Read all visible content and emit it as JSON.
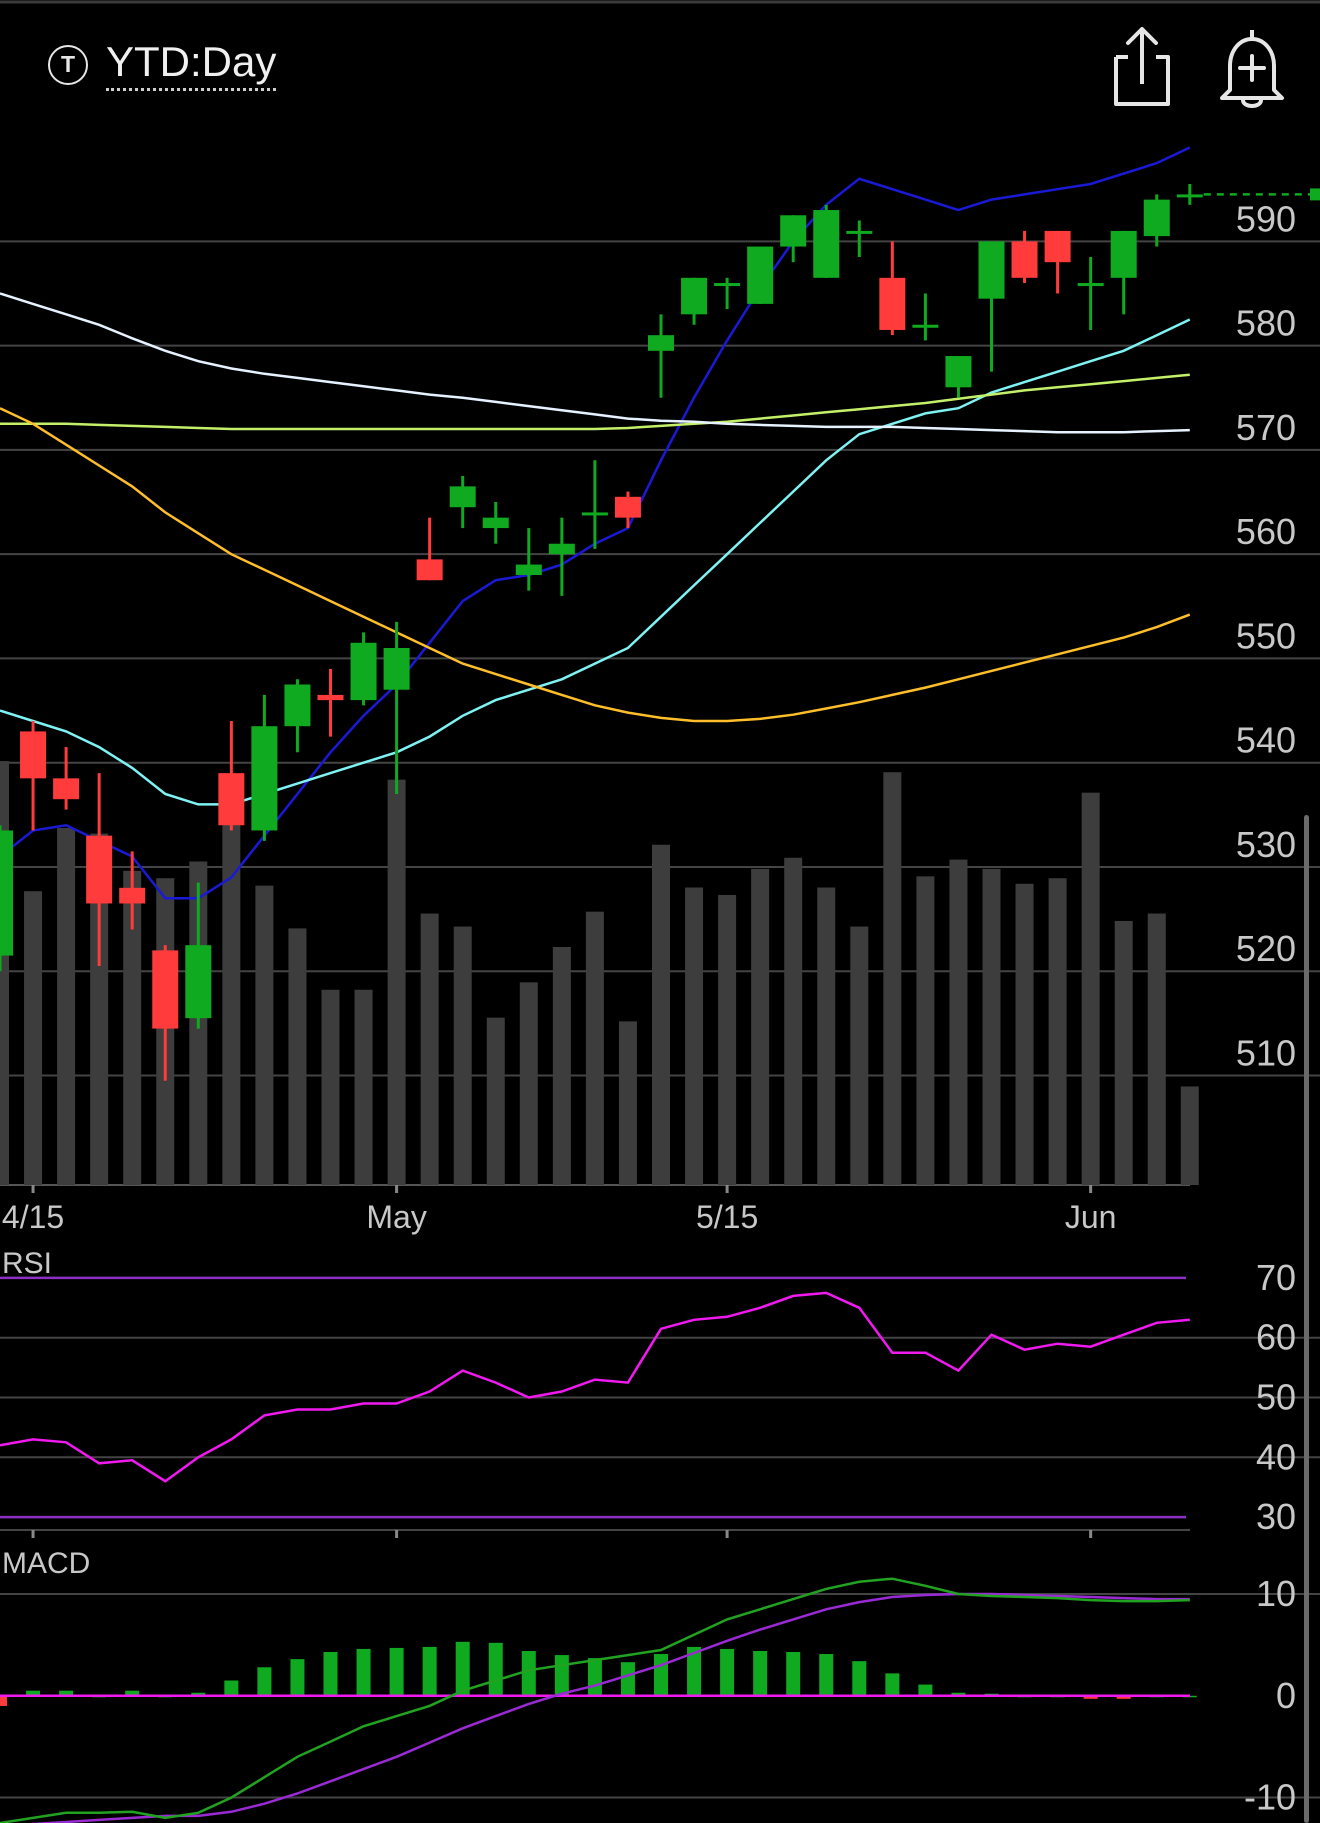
{
  "header": {
    "symbol_badge": "T",
    "range_label": "YTD:Day"
  },
  "icons": {
    "share": "share-icon",
    "alert": "bell-plus-icon"
  },
  "colors": {
    "background": "#000000",
    "up": "#0faa1f",
    "down": "#ff3b3b",
    "volume": "#3d3d3d",
    "ma_blue": "#1a1ad6",
    "ma_cyan": "#7ff3f3",
    "ma_lime": "#c4f069",
    "ma_white": "#e6f2ff",
    "ma_orange": "#ffbe2a",
    "rsi_line": "#f01af0",
    "rsi_bounds": "#8c2fc4",
    "macd_line": "#21a321",
    "macd_signal": "#9a2ad4",
    "macd_zero": "#f01af0"
  },
  "chart_data": [
    {
      "type": "candlestick",
      "name": "price",
      "y_ticks": [
        590,
        580,
        570,
        560,
        550,
        540,
        530,
        520,
        510
      ],
      "ylim": [
        499.5,
        597.8
      ],
      "x_ticks": [
        {
          "label": "4/15",
          "index": 1
        },
        {
          "label": "May",
          "index": 12
        },
        {
          "label": "5/15",
          "index": 22
        },
        {
          "label": "Jun",
          "index": 33
        }
      ],
      "candles": [
        {
          "o": 521.5,
          "h": 534,
          "l": 520,
          "c": 533.5
        },
        {
          "o": 543,
          "h": 544,
          "l": 533.5,
          "c": 538.5
        },
        {
          "o": 538.5,
          "h": 541.5,
          "l": 535.5,
          "c": 536.5
        },
        {
          "o": 533,
          "h": 539,
          "l": 520.5,
          "c": 526.5
        },
        {
          "o": 528,
          "h": 531.5,
          "l": 524,
          "c": 526.5
        },
        {
          "o": 522,
          "h": 522.5,
          "l": 509.5,
          "c": 514.5
        },
        {
          "o": 515.5,
          "h": 528.5,
          "l": 514.5,
          "c": 522.5
        },
        {
          "o": 539,
          "h": 544,
          "l": 533.5,
          "c": 534
        },
        {
          "o": 533.5,
          "h": 546.5,
          "l": 532.5,
          "c": 543.5
        },
        {
          "o": 543.5,
          "h": 548,
          "l": 541,
          "c": 547.5
        },
        {
          "o": 546.5,
          "h": 549,
          "l": 542.5,
          "c": 546
        },
        {
          "o": 546,
          "h": 552.5,
          "l": 545.5,
          "c": 551.5
        },
        {
          "o": 547,
          "h": 553.5,
          "l": 537,
          "c": 551
        },
        {
          "o": 559.5,
          "h": 563.5,
          "l": 557.5,
          "c": 557.5
        },
        {
          "o": 564.5,
          "h": 567.5,
          "l": 562.5,
          "c": 566.5
        },
        {
          "o": 562.5,
          "h": 565,
          "l": 561,
          "c": 563.5
        },
        {
          "o": 558,
          "h": 562.5,
          "l": 556.5,
          "c": 559
        },
        {
          "o": 560,
          "h": 563.5,
          "l": 556,
          "c": 561
        },
        {
          "o": 564,
          "h": 569,
          "l": 560.5,
          "c": 564
        },
        {
          "o": 565.5,
          "h": 566,
          "l": 562.5,
          "c": 563.5
        },
        {
          "o": 579.5,
          "h": 583,
          "l": 575,
          "c": 581
        },
        {
          "o": 583,
          "h": 586.5,
          "l": 582,
          "c": 586.5
        },
        {
          "o": 586,
          "h": 586.5,
          "l": 583.5,
          "c": 586
        },
        {
          "o": 584,
          "h": 589.5,
          "l": 584,
          "c": 589.5
        },
        {
          "o": 589.5,
          "h": 592.5,
          "l": 588,
          "c": 592.5
        },
        {
          "o": 586.5,
          "h": 593.5,
          "l": 586.5,
          "c": 593
        },
        {
          "o": 591,
          "h": 592,
          "l": 588.5,
          "c": 591
        },
        {
          "o": 586.5,
          "h": 590,
          "l": 581,
          "c": 581.5
        },
        {
          "o": 582,
          "h": 585,
          "l": 580.5,
          "c": 582
        },
        {
          "o": 576,
          "h": 579,
          "l": 575,
          "c": 579
        },
        {
          "o": 584.5,
          "h": 590,
          "l": 577.5,
          "c": 590
        },
        {
          "o": 590,
          "h": 591,
          "l": 586,
          "c": 586.5
        },
        {
          "o": 591,
          "h": 591,
          "l": 585,
          "c": 588
        },
        {
          "o": 586,
          "h": 588.5,
          "l": 581.5,
          "c": 586
        },
        {
          "o": 586.5,
          "h": 591,
          "l": 583,
          "c": 591
        },
        {
          "o": 590.5,
          "h": 594.5,
          "l": 589.5,
          "c": 594
        },
        {
          "o": 594.5,
          "h": 595.5,
          "l": 593.5,
          "c": 594.5
        }
      ],
      "last_price": 594.5,
      "volume": {
        "ylim": [
          0,
          32
        ],
        "values": [
          22.8,
          15.8,
          19.2,
          18.9,
          16.9,
          16.5,
          17.4,
          21.6,
          16.1,
          13.8,
          10.5,
          10.5,
          21.8,
          14.6,
          13.9,
          9.0,
          10.9,
          12.8,
          14.7,
          8.8,
          18.3,
          16.0,
          15.6,
          17.0,
          17.6,
          16.0,
          13.9,
          22.2,
          16.6,
          17.5,
          17.0,
          16.2,
          16.5,
          21.1,
          14.2,
          14.6,
          5.3
        ]
      },
      "series": [
        {
          "id": "ma_blue",
          "values": [
            531,
            533.5,
            534,
            532.5,
            531,
            527,
            527,
            529,
            533,
            537,
            541,
            544.5,
            547.5,
            551.5,
            555.5,
            557.5,
            558,
            559,
            561,
            562.5,
            569,
            575,
            580.5,
            585.5,
            590,
            593.5,
            596,
            595,
            594,
            593,
            594,
            594.5,
            595,
            595.5,
            596.5,
            597.5,
            599
          ]
        },
        {
          "id": "ma_cyan",
          "values": [
            545,
            544,
            543,
            541.5,
            539.5,
            537,
            536,
            536,
            537,
            538,
            539,
            540,
            541,
            542.5,
            544.5,
            546,
            547,
            548,
            549.5,
            551,
            554,
            557,
            560,
            563,
            566,
            569,
            571.5,
            572.5,
            573.5,
            574,
            575.5,
            576.5,
            577.5,
            578.5,
            579.5,
            581,
            582.5
          ]
        },
        {
          "id": "ma_lime",
          "values": [
            572.5,
            572.5,
            572.5,
            572.4,
            572.3,
            572.2,
            572.1,
            572,
            572,
            572,
            572,
            572,
            572,
            572,
            572,
            572,
            572,
            572,
            572,
            572.1,
            572.3,
            572.5,
            572.7,
            573,
            573.3,
            573.6,
            573.9,
            574.2,
            574.5,
            574.9,
            575.3,
            575.7,
            576,
            576.3,
            576.6,
            576.9,
            577.2
          ]
        },
        {
          "id": "ma_white",
          "values": [
            585,
            584,
            583,
            582,
            580.7,
            579.5,
            578.5,
            577.8,
            577.3,
            576.9,
            576.5,
            576.1,
            575.7,
            575.3,
            575,
            574.6,
            574.2,
            573.8,
            573.4,
            573,
            572.8,
            572.7,
            572.5,
            572.4,
            572.3,
            572.2,
            572.2,
            572.2,
            572.1,
            572,
            571.9,
            571.8,
            571.7,
            571.7,
            571.7,
            571.8,
            571.9
          ]
        },
        {
          "id": "ma_orange",
          "values": [
            574,
            572.5,
            570.5,
            568.5,
            566.5,
            564,
            562,
            560,
            558.5,
            557,
            555.5,
            554,
            552.5,
            551,
            549.5,
            548.5,
            547.5,
            546.5,
            545.5,
            544.8,
            544.3,
            544,
            544,
            544.2,
            544.6,
            545.2,
            545.8,
            546.5,
            547.2,
            548,
            548.8,
            549.6,
            550.4,
            551.2,
            552,
            553,
            554.2
          ]
        }
      ]
    },
    {
      "type": "line",
      "name": "RSI",
      "title": "RSI",
      "y_ticks": [
        70,
        60,
        50,
        40,
        30
      ],
      "ylim": [
        26.5,
        73
      ],
      "bounds": [
        70,
        30
      ],
      "values": [
        42,
        43,
        42.5,
        39,
        39.5,
        36,
        40,
        43,
        47,
        48,
        48,
        49,
        49,
        51,
        54.5,
        52.5,
        50,
        51,
        53,
        52.5,
        61.5,
        63,
        63.5,
        65,
        67,
        67.5,
        65,
        57.5,
        57.5,
        54.5,
        60.5,
        58,
        59,
        58.5,
        60.5,
        62.5,
        63
      ]
    },
    {
      "type": "bar+line",
      "name": "MACD",
      "title": "MACD",
      "y_ticks": [
        10,
        0,
        -10
      ],
      "ylim": [
        -12.5,
        15.5
      ],
      "histogram": [
        -1,
        0.5,
        0.5,
        0,
        0.5,
        0,
        0.3,
        1.5,
        2.8,
        3.6,
        4.3,
        4.6,
        4.7,
        4.8,
        5.3,
        5.2,
        4.4,
        4.0,
        3.7,
        3.3,
        4.1,
        4.8,
        4.6,
        4.4,
        4.3,
        4.1,
        3.4,
        2.2,
        1.1,
        0.3,
        0.2,
        0,
        0,
        -0.3,
        -0.3,
        0,
        0
      ],
      "macd": [
        -12.5,
        -12,
        -11.5,
        -11.5,
        -11.4,
        -12,
        -11.5,
        -10,
        -8,
        -6,
        -4.5,
        -3,
        -2,
        -1,
        0.5,
        1.5,
        2.5,
        3,
        3.5,
        4,
        4.5,
        6,
        7.5,
        8.5,
        9.5,
        10.5,
        11.2,
        11.5,
        10.8,
        10,
        9.8,
        9.7,
        9.6,
        9.4,
        9.3,
        9.3,
        9.4
      ],
      "signal": [
        -13,
        -12.6,
        -12.4,
        -12.2,
        -12,
        -11.8,
        -11.8,
        -11.4,
        -10.6,
        -9.6,
        -8.4,
        -7.2,
        -6,
        -4.6,
        -3.2,
        -2,
        -0.8,
        0.2,
        1,
        2,
        3,
        4.2,
        5.4,
        6.5,
        7.5,
        8.5,
        9.2,
        9.7,
        9.9,
        10,
        10,
        9.9,
        9.8,
        9.7,
        9.6,
        9.5,
        9.5
      ]
    }
  ]
}
